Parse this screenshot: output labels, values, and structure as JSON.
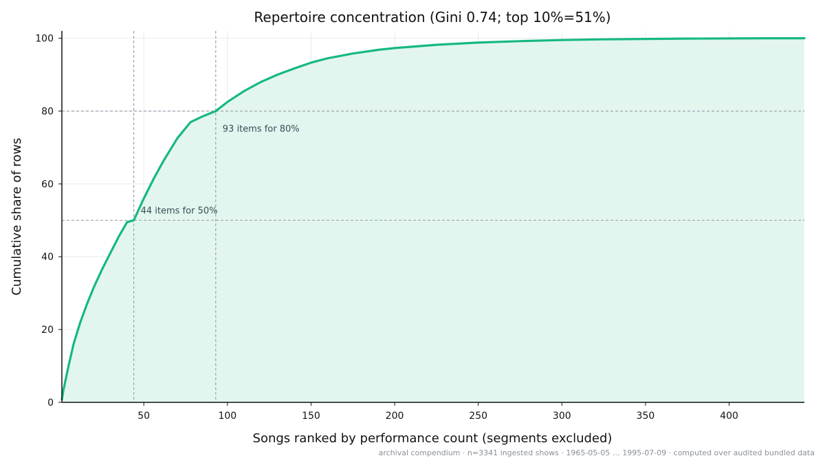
{
  "chart_data": {
    "type": "area",
    "title": "Repertoire concentration (Gini 0.74; top 10%=51%)",
    "xlabel": "Songs ranked by performance count (segments excluded)",
    "ylabel": "Cumulative share of rows",
    "xlim": [
      1,
      445
    ],
    "ylim": [
      0,
      102
    ],
    "x_ticks": [
      50,
      100,
      150,
      200,
      250,
      300,
      350,
      400
    ],
    "y_ticks": [
      0,
      20,
      40,
      60,
      80,
      100
    ],
    "grid": true,
    "colors": {
      "line": "#16b882",
      "fill": "#e0f5ee",
      "reference": "#9aa3b0"
    },
    "series": [
      {
        "x": [
          1,
          2,
          5,
          8,
          12,
          16,
          20,
          25,
          30,
          35,
          40,
          44,
          50,
          56,
          62,
          70,
          78,
          85,
          93,
          100,
          110,
          120,
          130,
          140,
          150,
          160,
          175,
          190,
          200,
          225,
          250,
          275,
          300,
          325,
          350,
          375,
          400,
          425,
          445
        ],
        "y": [
          0.8,
          3.5,
          10,
          16,
          22,
          27,
          31.5,
          36.5,
          41,
          45.5,
          49.5,
          50,
          56,
          61.5,
          66.5,
          72.5,
          77,
          78.5,
          80,
          82.5,
          85.5,
          88,
          90,
          91.7,
          93.3,
          94.5,
          95.8,
          96.8,
          97.3,
          98.2,
          98.8,
          99.2,
          99.5,
          99.7,
          99.8,
          99.9,
          99.95,
          100,
          100
        ]
      }
    ],
    "reference_lines": [
      {
        "share": 50,
        "items": 44,
        "label": "44 items for 50%"
      },
      {
        "share": 80,
        "items": 93,
        "label": "93 items for 80%"
      }
    ],
    "footer": "archival compendium · n=3341 ingested shows · 1965-05-05 … 1995-07-09 · computed over audited bundled data"
  }
}
